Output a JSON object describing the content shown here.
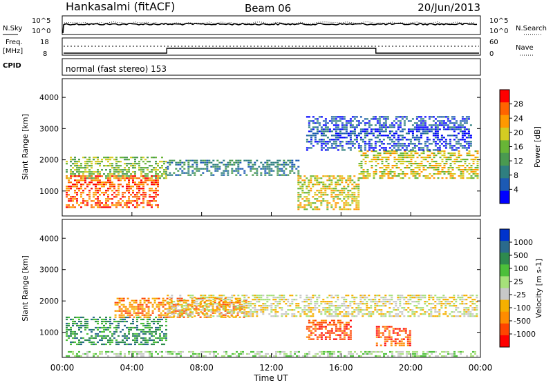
{
  "header": {
    "station": "Hankasalmi (fitACF)",
    "beam": "Beam 06",
    "date": "20/Jun/2013"
  },
  "left_labels": {
    "nsky": "N.Sky",
    "freq": "Freq.",
    "freq_unit": "[MHz]",
    "cpid": "CPID"
  },
  "right_labels": {
    "nsearch": "N.Search",
    "nave": "Nave"
  },
  "noise_panel": {
    "left_ticks": [
      "10^5",
      "10^0"
    ],
    "right_ticks": [
      "10^5",
      "10^0"
    ]
  },
  "freq_panel": {
    "left_ticks": [
      "18",
      "8"
    ],
    "right_ticks": [
      "60",
      "0"
    ]
  },
  "cpid_text": "normal (fast stereo) 153",
  "colors": {
    "power": [
      "#0000ff",
      "#1c5ab4",
      "#2f7f80",
      "#4a9a50",
      "#68b536",
      "#d4cc22",
      "#ff9900",
      "#ff6400",
      "#ff0000"
    ],
    "velocity": [
      "#0033cc",
      "#2a6a8c",
      "#2e8a4e",
      "#4cbf3a",
      "#a6e07a",
      "#c8c8c8",
      "#f6b000",
      "#ff8c00",
      "#ff4400",
      "#ff0000"
    ]
  },
  "chart_data": [
    {
      "type": "heatmap",
      "name": "power",
      "ylabel": "Slant Range [km]",
      "yticks": [
        1000,
        2000,
        3000,
        4000
      ],
      "ylim": [
        200,
        4600
      ],
      "xlim": [
        0,
        24
      ],
      "colorbar": {
        "label": "Power [dB]",
        "ticks": [
          "4",
          "8",
          "12",
          "16",
          "20",
          "24",
          "28"
        ],
        "range": [
          0,
          32
        ]
      },
      "bands": [
        {
          "t0": 0.2,
          "t1": 6.0,
          "r0": 1400,
          "r1": 2100,
          "level": 4
        },
        {
          "t0": 0.2,
          "t1": 5.5,
          "r0": 500,
          "r1": 1500,
          "level": 7
        },
        {
          "t0": 6.0,
          "t1": 13.5,
          "r0": 1500,
          "r1": 2000,
          "level": 2
        },
        {
          "t0": 13.5,
          "t1": 17.0,
          "r0": 400,
          "r1": 1500,
          "level": 5
        },
        {
          "t0": 17.0,
          "t1": 23.8,
          "r0": 1400,
          "r1": 2300,
          "level": 5
        },
        {
          "t0": 14.0,
          "t1": 23.5,
          "r0": 2300,
          "r1": 3400,
          "level": 1
        }
      ]
    },
    {
      "type": "heatmap",
      "name": "velocity",
      "ylabel": "Slant Range [km]",
      "xlabel": "Time UT",
      "yticks": [
        1000,
        2000,
        3000,
        4000
      ],
      "ylim": [
        200,
        4600
      ],
      "xlim": [
        0,
        24
      ],
      "xticks": [
        "00:00",
        "04:00",
        "08:00",
        "12:00",
        "16:00",
        "20:00",
        "00:00"
      ],
      "colorbar": {
        "label": "Velocity [m s-1]",
        "ticks": [
          "1000",
          "500",
          "100",
          "25",
          "-25",
          "-100",
          "-500",
          "-1000"
        ]
      },
      "bands": [
        {
          "t0": 0.2,
          "t1": 6.0,
          "r0": 600,
          "r1": 1500,
          "level": 2
        },
        {
          "t0": 3.0,
          "t1": 10.5,
          "r0": 1500,
          "r1": 2100,
          "level": 7
        },
        {
          "t0": 6.0,
          "t1": 23.8,
          "r0": 1500,
          "r1": 2200,
          "level": 5
        },
        {
          "t0": 14.0,
          "t1": 16.5,
          "r0": 800,
          "r1": 1400,
          "level": 8
        },
        {
          "t0": 18.0,
          "t1": 20.0,
          "r0": 600,
          "r1": 1200,
          "level": 8
        },
        {
          "t0": 0.2,
          "t1": 23.8,
          "r0": 250,
          "r1": 400,
          "level": 4
        }
      ]
    }
  ]
}
